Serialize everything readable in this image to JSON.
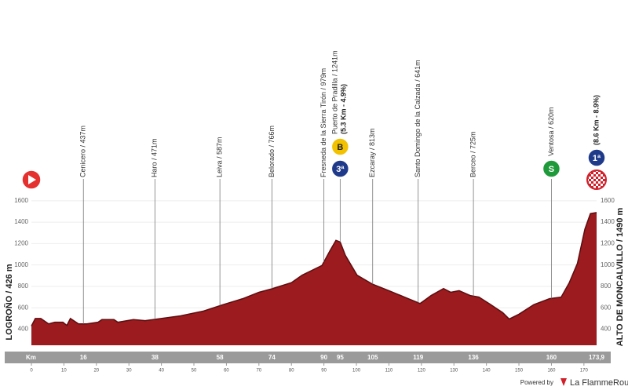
{
  "chart_data": {
    "type": "area",
    "color": "#9b1b1e",
    "xlabel": "Km",
    "start_label": "LOGROÑO / 426 m",
    "finish_label": "ALTO DE MONCALVILLO / 1490 m",
    "x": [
      0,
      1.2,
      2.9,
      5.3,
      7.2,
      9.7,
      10.9,
      12,
      14.5,
      17,
      20.5,
      21.7,
      25.4,
      26.6,
      31.4,
      35,
      38.6,
      45.9,
      53,
      59,
      65,
      70,
      73.7,
      80,
      83.3,
      87,
      89.4,
      91.8,
      93.7,
      95,
      96.6,
      100.2,
      105,
      110,
      116,
      119.6,
      123,
      126.8,
      129,
      131.6,
      135,
      137.7,
      141.3,
      145,
      147,
      150,
      154.6,
      159.4,
      163,
      165.5,
      168,
      170.3,
      172,
      173.9
    ],
    "values": [
      430,
      500,
      500,
      450,
      465,
      465,
      435,
      500,
      450,
      450,
      465,
      490,
      490,
      465,
      490,
      480,
      495,
      525,
      570,
      630,
      685,
      745,
      775,
      835,
      905,
      960,
      995,
      1130,
      1230,
      1215,
      1090,
      905,
      820,
      760,
      685,
      640,
      715,
      780,
      745,
      760,
      715,
      700,
      630,
      555,
      495,
      540,
      630,
      685,
      700,
      835,
      1015,
      1335,
      1480,
      1490
    ],
    "xlim": [
      0,
      173.9
    ],
    "xticks": [
      0,
      10,
      20,
      30,
      40,
      50,
      60,
      70,
      80,
      90,
      100,
      110,
      120,
      130,
      140,
      150,
      160,
      170
    ],
    "ylim": [
      250,
      1650
    ],
    "yticks": [
      400,
      600,
      800,
      1000,
      1200,
      1400,
      1600
    ],
    "grid": true,
    "waypoints": [
      {
        "km": 16,
        "label": "Cenicero / 437m"
      },
      {
        "km": 38,
        "label": "Haro / 471m"
      },
      {
        "km": 58,
        "label": "Leiva / 587m"
      },
      {
        "km": 74,
        "label": "Belorado / 766m"
      },
      {
        "km": 90,
        "label": "Fresneda de la Sierra Tirón / 979m"
      },
      {
        "km": 95,
        "label": "Puerto de Pradilla / 1241m",
        "note": "(5.3 Km - 4.9%)",
        "icons": [
          {
            "text": "3ª",
            "color": "#1f3a8a"
          },
          {
            "text": "B",
            "color": "#f2c200"
          }
        ]
      },
      {
        "km": 105,
        "label": "Ezcaray / 813m"
      },
      {
        "km": 119,
        "label": "Santo Domingo de la Calzada / 641m"
      },
      {
        "km": 136,
        "label": "Berceo / 725m"
      },
      {
        "km": 160,
        "label": "Ventosa / 620m",
        "icons": [
          {
            "text": "S",
            "color": "#1f9a3a"
          }
        ]
      },
      {
        "km": {
          "value": 173.9,
          "label": "173,9"
        },
        "note": "(8.6 Km - 8.9%)",
        "icons": [
          {
            "text": "1ª",
            "color": "#1f3a8a"
          }
        ]
      }
    ]
  },
  "footer": {
    "powered": "Powered by",
    "brand": "La FlammeRouge"
  }
}
